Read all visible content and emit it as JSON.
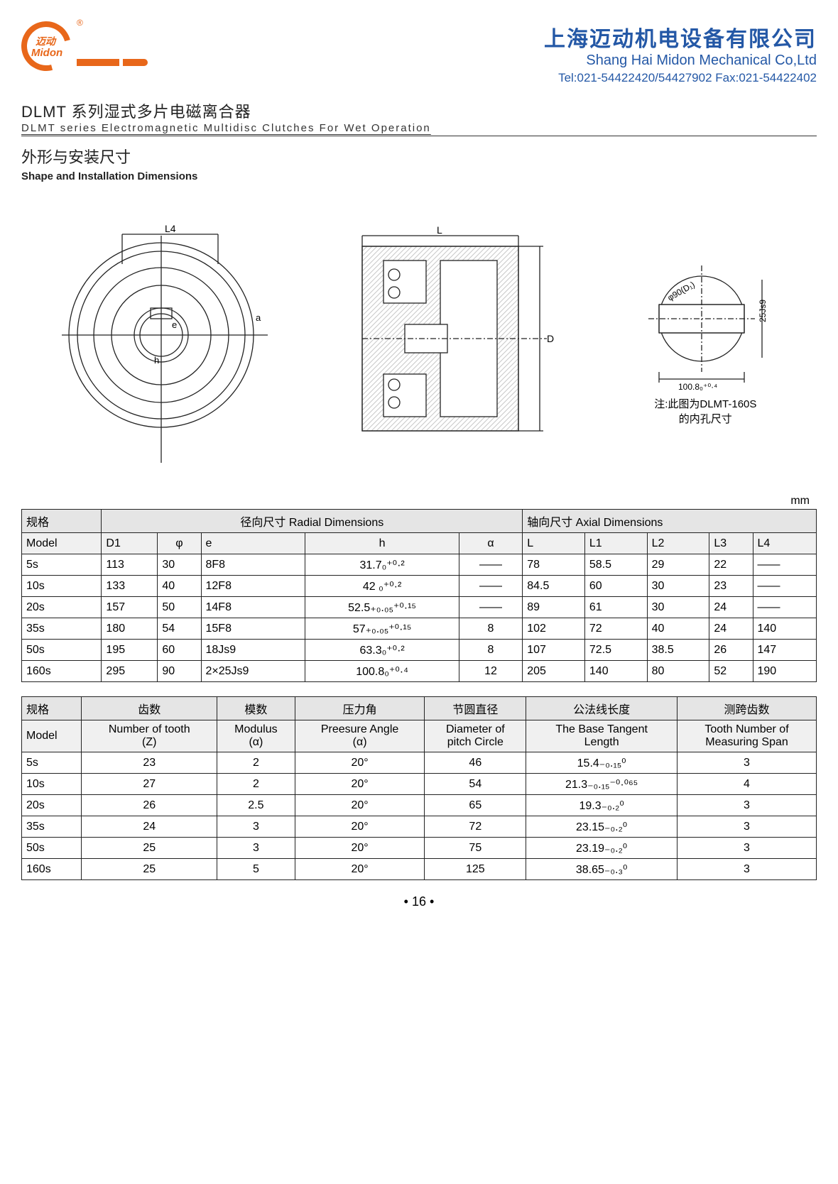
{
  "header": {
    "logo_cn": "迈动",
    "logo_en": "Midon",
    "reg": "®",
    "company_cn": "上海迈动机电设备有限公司",
    "company_en": "Shang Hai Midon Mechanical Co,Ltd",
    "tel": "Tel:021-54422420/54427902 Fax:021-54422402"
  },
  "titles": {
    "series_cn": "DLMT 系列湿式多片电磁离合器",
    "series_en": "DLMT series Electromagnetic Multidisc Clutches For Wet Operation",
    "shape_cn": "外形与安装尺寸",
    "shape_en": "Shape and Installation Dimensions"
  },
  "drawing_note": "注:此图为DLMT-160S\n的内孔尺寸",
  "dim_labels": {
    "L4": "L4",
    "L": "L",
    "D": "D",
    "a": "a",
    "e": "e",
    "h": "h",
    "d90": "φ90(D₁)",
    "j25": "25Js9",
    "b100": "100.8₀⁺⁰·⁴"
  },
  "unit": "mm",
  "table1": {
    "group_labels": {
      "spec": "规格",
      "radial": "径向尺寸 Radial Dimensions",
      "axial": "轴向尺寸 Axial Dimensions"
    },
    "cols": [
      "Model",
      "D1",
      "φ",
      "e",
      "h",
      "α",
      "L",
      "L1",
      "L2",
      "L3",
      "L4"
    ],
    "rows": [
      [
        "5s",
        "113",
        "30",
        "8F8",
        "31.7₀⁺⁰·²",
        "——",
        "78",
        "58.5",
        "29",
        "22",
        "——"
      ],
      [
        "10s",
        "133",
        "40",
        "12F8",
        "42 ₀⁺⁰·²",
        "——",
        "84.5",
        "60",
        "30",
        "23",
        "——"
      ],
      [
        "20s",
        "157",
        "50",
        "14F8",
        "52.5₊₀.₀₅⁺⁰·¹⁵",
        "——",
        "89",
        "61",
        "30",
        "24",
        "——"
      ],
      [
        "35s",
        "180",
        "54",
        "15F8",
        "57₊₀.₀₅⁺⁰·¹⁵",
        "8",
        "102",
        "72",
        "40",
        "24",
        "140"
      ],
      [
        "50s",
        "195",
        "60",
        "18Js9",
        "63.3₀⁺⁰·²",
        "8",
        "107",
        "72.5",
        "38.5",
        "26",
        "147"
      ],
      [
        "160s",
        "295",
        "90",
        "2×25Js9",
        "100.8₀⁺⁰·⁴",
        "12",
        "205",
        "140",
        "80",
        "52",
        "190"
      ]
    ]
  },
  "table2": {
    "hdr_cn": [
      "规格",
      "齿数",
      "模数",
      "压力角",
      "节圆直径",
      "公法线长度",
      "测跨齿数"
    ],
    "hdr_en": [
      "Model",
      "Number of tooth\n(Z)",
      "Modulus\n(α)",
      "Preesure Angle\n(α)",
      "Diameter of\npitch Circle",
      "The Base Tangent\nLength",
      "Tooth Number of\nMeasuring Span"
    ],
    "rows": [
      [
        "5s",
        "23",
        "2",
        "20°",
        "46",
        "15.4₋₀.₁₅⁰",
        "3"
      ],
      [
        "10s",
        "27",
        "2",
        "20°",
        "54",
        "21.3₋₀.₁₅⁻⁰·⁰⁶⁵",
        "4"
      ],
      [
        "20s",
        "26",
        "2.5",
        "20°",
        "65",
        "19.3₋₀.₂⁰",
        "3"
      ],
      [
        "35s",
        "24",
        "3",
        "20°",
        "72",
        "23.15₋₀.₂⁰",
        "3"
      ],
      [
        "50s",
        "25",
        "3",
        "20°",
        "75",
        "23.19₋₀.₂⁰",
        "3"
      ],
      [
        "160s",
        "25",
        "5",
        "20°",
        "125",
        "38.65₋₀.₃⁰",
        "3"
      ]
    ]
  },
  "page": "• 16 •"
}
